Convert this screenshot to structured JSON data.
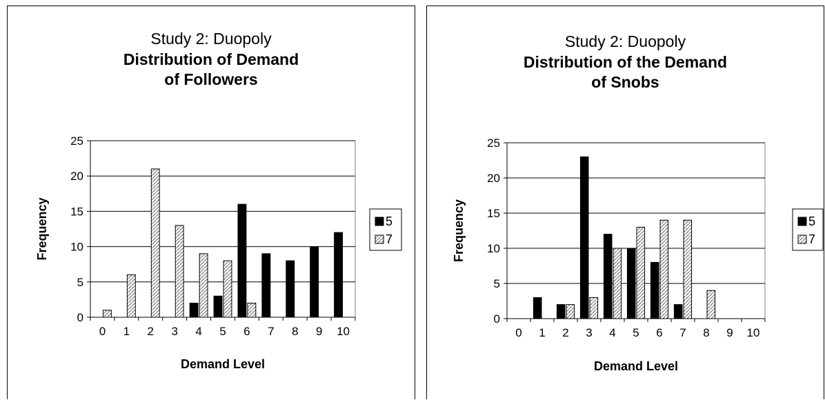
{
  "chart_data": [
    {
      "type": "bar",
      "title": "Study 2: Duopoly",
      "subtitle_line1": "Distribution of Demand",
      "subtitle_line2": "of  Followers",
      "xlabel": "Demand Level",
      "ylabel": "Frequency",
      "categories": [
        "0",
        "1",
        "2",
        "3",
        "4",
        "5",
        "6",
        "7",
        "8",
        "9",
        "10"
      ],
      "ylim": [
        0,
        25
      ],
      "yticks": [
        "0",
        "5",
        "10",
        "15",
        "20",
        "25"
      ],
      "grid": true,
      "legend_position": "right",
      "series": [
        {
          "name": "5",
          "style": "solid",
          "color": "#000000",
          "values": [
            0,
            0,
            0,
            0,
            2,
            3,
            16,
            9,
            8,
            10,
            12
          ]
        },
        {
          "name": "7",
          "style": "hatched",
          "color": "#ffffff",
          "values": [
            1,
            6,
            21,
            13,
            9,
            8,
            2,
            0,
            0,
            0,
            0
          ]
        }
      ]
    },
    {
      "type": "bar",
      "title": "Study 2: Duopoly",
      "subtitle_line1": "Distribution of the Demand",
      "subtitle_line2": "of Snobs",
      "xlabel": "Demand Level",
      "ylabel": "Frequency",
      "categories": [
        "0",
        "1",
        "2",
        "3",
        "4",
        "5",
        "6",
        "7",
        "8",
        "9",
        "10"
      ],
      "ylim": [
        0,
        25
      ],
      "yticks": [
        "0",
        "5",
        "10",
        "15",
        "20",
        "25"
      ],
      "grid": true,
      "legend_position": "right",
      "series": [
        {
          "name": "5",
          "style": "solid",
          "color": "#000000",
          "values": [
            0,
            3,
            2,
            23,
            12,
            10,
            8,
            2,
            0,
            0,
            0
          ]
        },
        {
          "name": "7",
          "style": "hatched",
          "color": "#ffffff",
          "values": [
            0,
            0,
            2,
            3,
            10,
            13,
            14,
            14,
            4,
            0,
            0
          ]
        }
      ]
    }
  ]
}
